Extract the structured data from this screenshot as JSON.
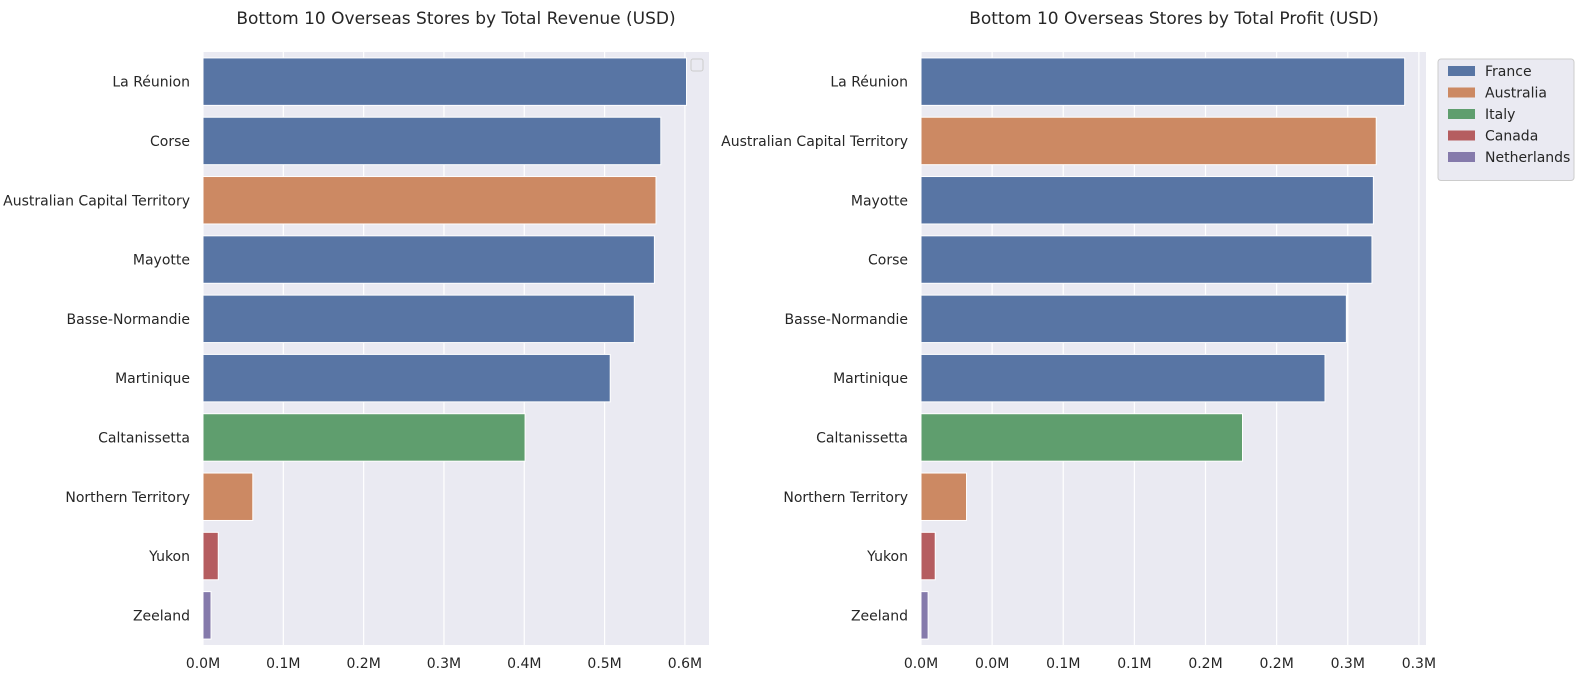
{
  "colors": {
    "background": "#eaeaf2",
    "grid": "#ffffff",
    "France": "#5875a4",
    "Australia": "#cc8963",
    "Italy": "#5f9e6e",
    "Canada": "#b55d60",
    "Netherlands": "#857aab"
  },
  "legend": {
    "placement": "outside-upper-right",
    "entries": [
      "France",
      "Australia",
      "Italy",
      "Canada",
      "Netherlands"
    ]
  },
  "chart_data": [
    {
      "type": "bar",
      "orientation": "horizontal",
      "title": "Bottom 10 Overseas Stores by Total Revenue (USD)",
      "xlabel": "",
      "ylabel": "",
      "xlim": [
        0,
        0.63
      ],
      "grid": true,
      "xticks": [
        0,
        0.1,
        0.2,
        0.3,
        0.4,
        0.5,
        0.6
      ],
      "xtick_labels": [
        "0.0M",
        "0.1M",
        "0.2M",
        "0.3M",
        "0.4M",
        "0.5M",
        "0.6M"
      ],
      "categories": [
        "La Réunion",
        "Corse",
        "Australian Capital Territory",
        "Mayotte",
        "Basse-Normandie",
        "Martinique",
        "Caltanissetta",
        "Northern Territory",
        "Yukon",
        "Zeeland"
      ],
      "values": [
        0.602,
        0.57,
        0.564,
        0.562,
        0.537,
        0.507,
        0.401,
        0.062,
        0.019,
        0.01
      ],
      "country": [
        "France",
        "France",
        "Australia",
        "France",
        "France",
        "France",
        "Italy",
        "Australia",
        "Canada",
        "Netherlands"
      ],
      "empty_legend": true
    },
    {
      "type": "bar",
      "orientation": "horizontal",
      "title": "Bottom 10 Overseas Stores by Total Profit (USD)",
      "xlabel": "",
      "ylabel": "",
      "xlim": [
        0,
        0.355
      ],
      "grid": true,
      "xticks": [
        0,
        0.05,
        0.1,
        0.15,
        0.2,
        0.25,
        0.3,
        0.35
      ],
      "xtick_labels": [
        "0.0M",
        "0.0M",
        "0.1M",
        "0.1M",
        "0.2M",
        "0.2M",
        "0.3M",
        "0.3M"
      ],
      "categories": [
        "La Réunion",
        "Australian Capital Territory",
        "Mayotte",
        "Corse",
        "Basse-Normandie",
        "Martinique",
        "Caltanissetta",
        "Northern Territory",
        "Yukon",
        "Zeeland"
      ],
      "values": [
        0.34,
        0.32,
        0.318,
        0.317,
        0.299,
        0.284,
        0.226,
        0.032,
        0.01,
        0.005
      ],
      "country": [
        "France",
        "Australia",
        "France",
        "France",
        "France",
        "France",
        "Italy",
        "Australia",
        "Canada",
        "Netherlands"
      ],
      "legend": true
    }
  ]
}
